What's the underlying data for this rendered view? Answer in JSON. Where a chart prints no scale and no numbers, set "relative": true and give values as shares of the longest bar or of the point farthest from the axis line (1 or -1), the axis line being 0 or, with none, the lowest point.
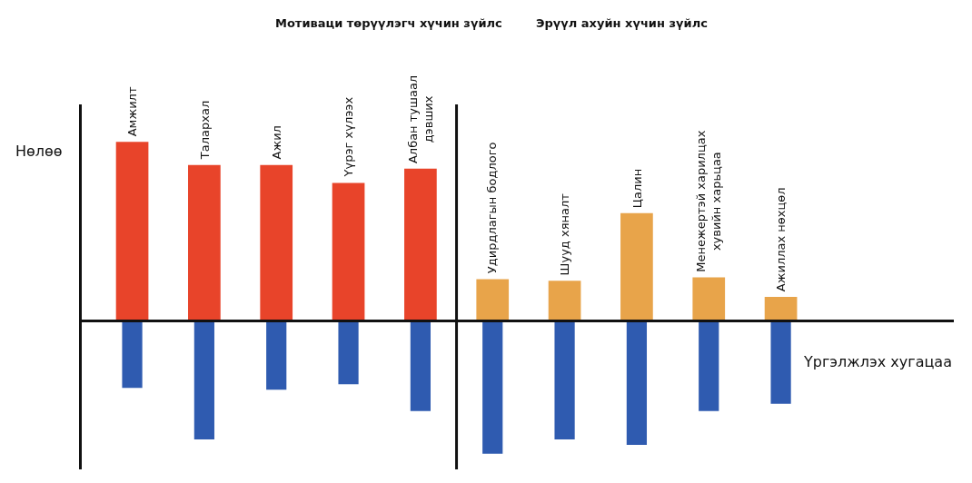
{
  "chart_data": {
    "type": "bar",
    "relative": true,
    "xlabel": "Үргэлжлэх хугацаа",
    "ylabel": "Нөлөө",
    "categories": [
      "Амжилт",
      "Талархал",
      "Ажил",
      "Үүрэг хүлээх",
      "Албан тушаал дэвших",
      "Удирдлагын бодлого",
      "Шууд хяналт",
      "Цалин",
      "Менежертэй харилцах хувийн харьцаа",
      "Ажиллах нөхцөл"
    ],
    "series": [
      {
        "colors": [
          "#e8442a",
          "#e8442a",
          "#e8442a",
          "#e8442a",
          "#e8442a",
          "#e8a44a",
          "#e8a44a",
          "#e8a44a",
          "#e8a44a",
          "#e8a44a"
        ],
        "values": [
          1.0,
          0.87,
          0.87,
          0.77,
          0.85,
          0.23,
          0.22,
          0.6,
          0.24,
          0.13
        ]
      },
      {
        "colors": [
          "#2f5bb0",
          "#2f5bb0",
          "#2f5bb0",
          "#2f5bb0",
          "#2f5bb0",
          "#2f5bb0",
          "#2f5bb0",
          "#2f5bb0",
          "#2f5bb0",
          "#2f5bb0"
        ],
        "values": [
          -0.38,
          -0.67,
          -0.39,
          -0.36,
          -0.51,
          -0.75,
          -0.67,
          -0.7,
          -0.51,
          -0.47
        ]
      }
    ],
    "annotations": [
      "Мотиваци төрүүлэгч хүчин зүйлс",
      "Эрүүл ахуйн хүчин зүйлс"
    ]
  }
}
